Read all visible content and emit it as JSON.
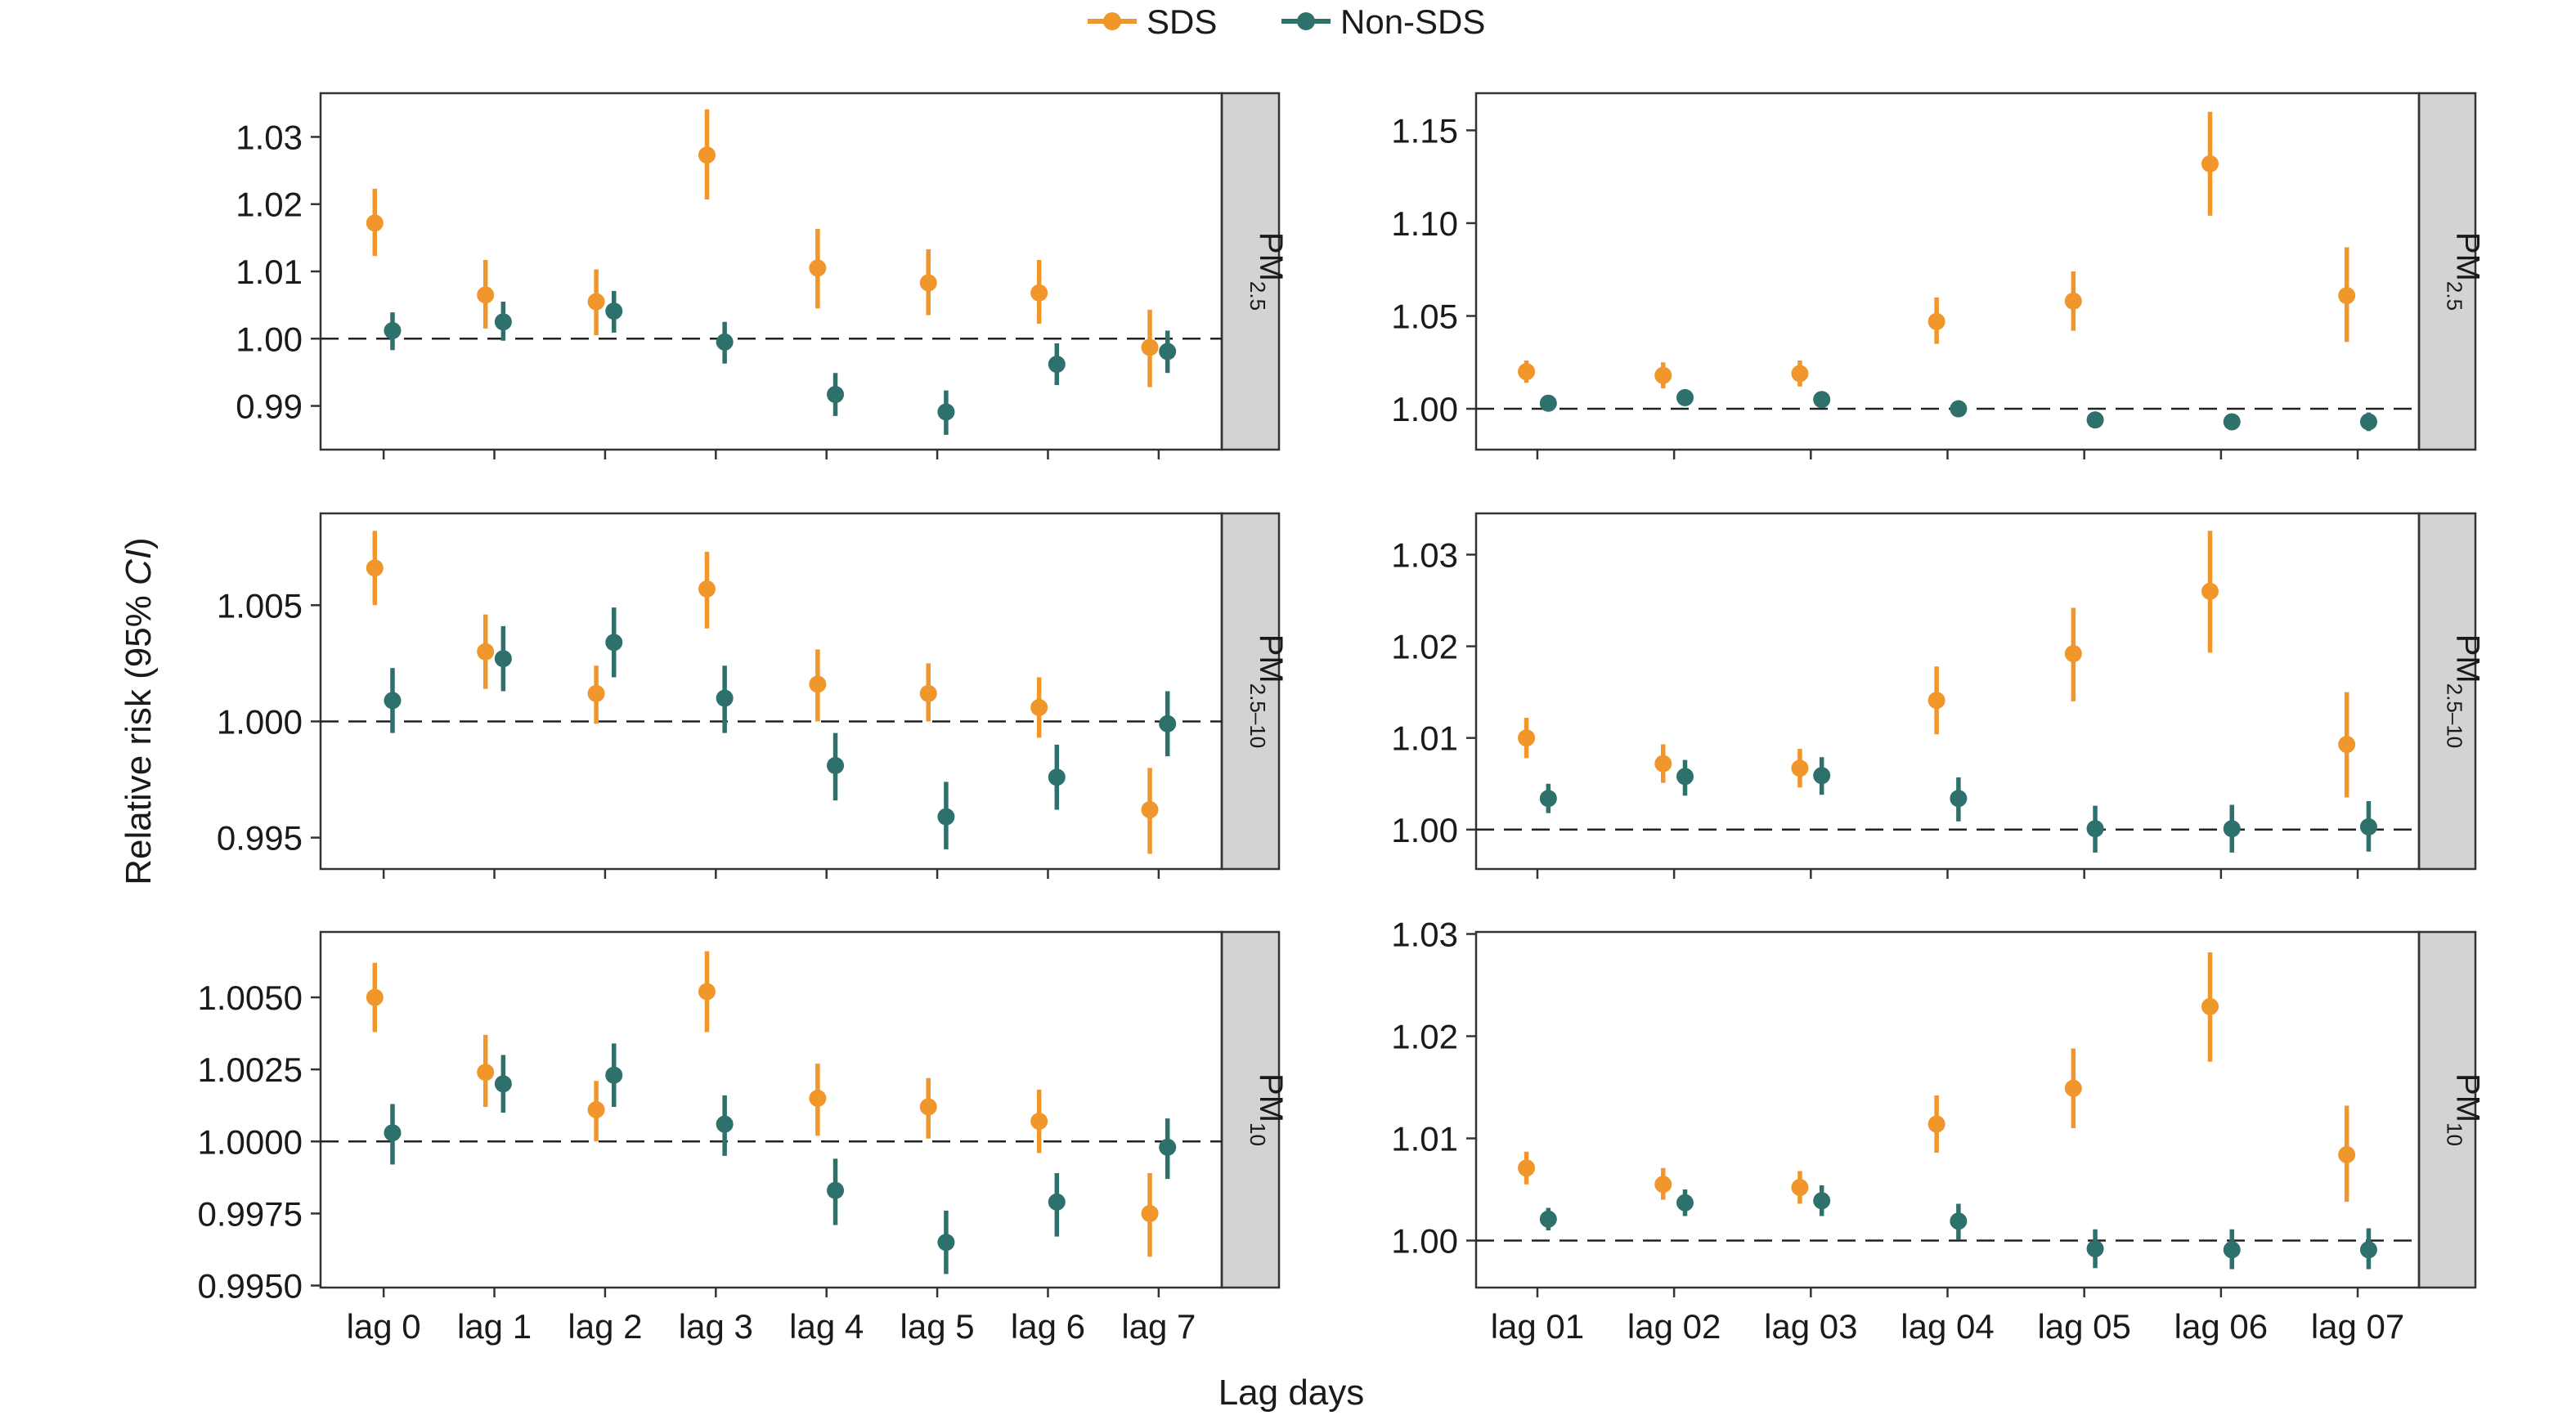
{
  "legend": {
    "sds_label": "SDS",
    "nonsds_label": "Non-SDS"
  },
  "colors": {
    "sds": "#f0962b",
    "nonsds": "#2e706c",
    "strip": "#d3d3d3",
    "frame": "#333333"
  },
  "axis_titles": {
    "y": "Relative risk (95% ",
    "y_italic": "CI",
    "y_close": ")",
    "x": "Lag days"
  },
  "chart_data": [
    {
      "type": "scatter",
      "row": 0,
      "col": 0,
      "strip_label": "PM",
      "strip_sub": "2.5",
      "categories": [
        "lag 0",
        "lag 1",
        "lag 2",
        "lag 3",
        "lag 4",
        "lag 5",
        "lag 6",
        "lag 7"
      ],
      "ylim": [
        0.9835,
        1.0365
      ],
      "yticks": [
        0.99,
        1.0,
        1.01,
        1.02,
        1.03
      ],
      "ytick_labels": [
        "0.99",
        "1.00",
        "1.01",
        "1.02",
        "1.03"
      ],
      "reference": 1.0,
      "show_xlabels": false,
      "series": [
        {
          "key": "sds",
          "values": [
            1.0172,
            1.0065,
            1.0055,
            1.0273,
            1.0105,
            1.0083,
            1.0068,
            0.9987
          ],
          "lower": [
            1.0123,
            1.0015,
            1.0005,
            1.0207,
            1.0045,
            1.0035,
            1.0022,
            0.9928
          ],
          "upper": [
            1.0223,
            1.0117,
            1.0103,
            1.0341,
            1.0163,
            1.0133,
            1.0117,
            1.0043
          ]
        },
        {
          "key": "nonsds",
          "values": [
            1.0012,
            1.0025,
            1.0041,
            0.9995,
            0.9917,
            0.9891,
            0.9962,
            0.9981
          ],
          "lower": [
            0.9983,
            0.9997,
            1.0009,
            0.9963,
            0.9885,
            0.9857,
            0.9931,
            0.9949
          ],
          "upper": [
            1.0039,
            1.0055,
            1.0071,
            1.0025,
            0.9949,
            0.9923,
            0.9993,
            1.0012
          ]
        }
      ]
    },
    {
      "type": "scatter",
      "row": 0,
      "col": 1,
      "strip_label": "PM",
      "strip_sub": "2.5",
      "categories": [
        "lag 01",
        "lag 02",
        "lag 03",
        "lag 04",
        "lag 05",
        "lag 06",
        "lag 07"
      ],
      "ylim": [
        0.978,
        1.17
      ],
      "yticks": [
        1.0,
        1.05,
        1.1,
        1.15
      ],
      "ytick_labels": [
        "1.00",
        "1.05",
        "1.10",
        "1.15"
      ],
      "reference": 1.0,
      "show_xlabels": false,
      "series": [
        {
          "key": "sds",
          "values": [
            1.02,
            1.018,
            1.019,
            1.047,
            1.058,
            1.132,
            1.061
          ],
          "lower": [
            1.014,
            1.011,
            1.012,
            1.035,
            1.042,
            1.104,
            1.036
          ],
          "upper": [
            1.026,
            1.025,
            1.026,
            1.06,
            1.074,
            1.16,
            1.087
          ]
        },
        {
          "key": "nonsds",
          "values": [
            1.003,
            1.006,
            1.005,
            1.0,
            0.994,
            0.993,
            0.993
          ],
          "lower": [
            1.0,
            1.003,
            1.001,
            0.996,
            0.99,
            0.989,
            0.988
          ],
          "upper": [
            1.006,
            1.009,
            1.009,
            1.004,
            0.998,
            0.997,
            0.998
          ]
        }
      ]
    },
    {
      "type": "scatter",
      "row": 1,
      "col": 0,
      "strip_label": "PM",
      "strip_sub": "2.5–10",
      "categories": [
        "lag 0",
        "lag 1",
        "lag 2",
        "lag 3",
        "lag 4",
        "lag 5",
        "lag 6",
        "lag 7"
      ],
      "ylim": [
        0.99365,
        1.00895
      ],
      "yticks": [
        0.995,
        1.0,
        1.005
      ],
      "ytick_labels": [
        "0.995",
        "1.000",
        "1.005"
      ],
      "reference": 1.0,
      "show_xlabels": false,
      "series": [
        {
          "key": "sds",
          "values": [
            1.0066,
            1.003,
            1.0012,
            1.0057,
            1.0016,
            1.0012,
            1.0006,
            0.9962
          ],
          "lower": [
            1.005,
            1.0014,
            0.9999,
            1.004,
            1.0,
            1.0,
            0.9993,
            0.9943
          ],
          "upper": [
            1.0082,
            1.0046,
            1.0024,
            1.0073,
            1.0031,
            1.0025,
            1.0019,
            0.998
          ]
        },
        {
          "key": "nonsds",
          "values": [
            1.0009,
            1.0027,
            1.0034,
            1.001,
            0.9981,
            0.9959,
            0.9976,
            0.9999
          ],
          "lower": [
            0.9995,
            1.0013,
            1.0019,
            0.9995,
            0.9966,
            0.9945,
            0.9962,
            0.9985
          ],
          "upper": [
            1.0023,
            1.0041,
            1.0049,
            1.0024,
            0.9995,
            0.9974,
            0.999,
            1.0013
          ]
        }
      ]
    },
    {
      "type": "scatter",
      "row": 1,
      "col": 1,
      "strip_label": "PM",
      "strip_sub": "2.5–10",
      "categories": [
        "lag 01",
        "lag 02",
        "lag 03",
        "lag 04",
        "lag 05",
        "lag 06",
        "lag 07"
      ],
      "ylim": [
        0.9957,
        1.0345
      ],
      "yticks": [
        1.0,
        1.01,
        1.02,
        1.03
      ],
      "ytick_labels": [
        "1.00",
        "1.01",
        "1.02",
        "1.03"
      ],
      "reference": 1.0,
      "show_xlabels": false,
      "series": [
        {
          "key": "sds",
          "values": [
            1.01,
            1.0072,
            1.0067,
            1.0141,
            1.0192,
            1.026,
            1.0093
          ],
          "lower": [
            1.0078,
            1.0051,
            1.0046,
            1.0104,
            1.014,
            1.0193,
            1.0035
          ],
          "upper": [
            1.0122,
            1.0093,
            1.0088,
            1.0178,
            1.0242,
            1.0326,
            1.015
          ]
        },
        {
          "key": "nonsds",
          "values": [
            1.0034,
            1.0058,
            1.0059,
            1.0034,
            1.0001,
            1.0001,
            1.0003
          ],
          "lower": [
            1.0018,
            1.0037,
            1.0038,
            1.0009,
            0.9975,
            0.9975,
            0.9976
          ],
          "upper": [
            1.005,
            1.0076,
            1.0079,
            1.0057,
            1.0026,
            1.0027,
            1.0031
          ]
        }
      ]
    },
    {
      "type": "scatter",
      "row": 2,
      "col": 0,
      "strip_label": "PM",
      "strip_sub": "10",
      "categories": [
        "lag 0",
        "lag 1",
        "lag 2",
        "lag 3",
        "lag 4",
        "lag 5",
        "lag 6",
        "lag 7"
      ],
      "ylim": [
        0.99493,
        1.00727
      ],
      "yticks": [
        0.995,
        0.9975,
        1.0,
        1.0025,
        1.005
      ],
      "ytick_labels": [
        "0.9950",
        "0.9975",
        "1.0000",
        "1.0025",
        "1.0050"
      ],
      "reference": 1.0,
      "show_xlabels": true,
      "series": [
        {
          "key": "sds",
          "values": [
            1.005,
            1.0024,
            1.0011,
            1.0052,
            1.0015,
            1.0012,
            1.0007,
            0.9975
          ],
          "lower": [
            1.0038,
            1.0012,
            1.0,
            1.0038,
            1.0002,
            1.0001,
            0.9996,
            0.996
          ],
          "upper": [
            1.0062,
            1.0037,
            1.0021,
            1.0066,
            1.0027,
            1.0022,
            1.0018,
            0.9989
          ]
        },
        {
          "key": "nonsds",
          "values": [
            1.0003,
            1.002,
            1.0023,
            1.0006,
            0.9983,
            0.9965,
            0.9979,
            0.9998
          ],
          "lower": [
            0.9992,
            1.001,
            1.0012,
            0.9995,
            0.9971,
            0.9954,
            0.9967,
            0.9987
          ],
          "upper": [
            1.0013,
            1.003,
            1.0034,
            1.0016,
            0.9994,
            0.9976,
            0.9989,
            1.0008
          ]
        }
      ]
    },
    {
      "type": "scatter",
      "row": 2,
      "col": 1,
      "strip_label": "PM",
      "strip_sub": "10",
      "categories": [
        "lag 01",
        "lag 02",
        "lag 03",
        "lag 04",
        "lag 05",
        "lag 06",
        "lag 07"
      ],
      "ylim": [
        0.9954,
        1.0302
      ],
      "yticks": [
        1.0,
        1.01,
        1.02,
        1.03
      ],
      "ytick_labels": [
        "1.00",
        "1.01",
        "1.02",
        "1.03"
      ],
      "reference": 1.0,
      "show_xlabels": true,
      "series": [
        {
          "key": "sds",
          "values": [
            1.0071,
            1.0055,
            1.0052,
            1.0114,
            1.0149,
            1.0229,
            1.0084
          ],
          "lower": [
            1.0055,
            1.004,
            1.0036,
            1.0086,
            1.011,
            1.0175,
            1.0038
          ],
          "upper": [
            1.0087,
            1.0071,
            1.0068,
            1.0142,
            1.0188,
            1.0282,
            1.0132
          ]
        },
        {
          "key": "nonsds",
          "values": [
            1.0021,
            1.0037,
            1.0039,
            1.0019,
            0.9992,
            0.9991,
            0.9991
          ],
          "lower": [
            1.001,
            1.0024,
            1.0024,
            1.0001,
            0.9973,
            0.9972,
            0.9972
          ],
          "upper": [
            1.0032,
            1.005,
            1.0054,
            1.0036,
            1.0011,
            1.0011,
            1.0012
          ]
        }
      ]
    }
  ]
}
